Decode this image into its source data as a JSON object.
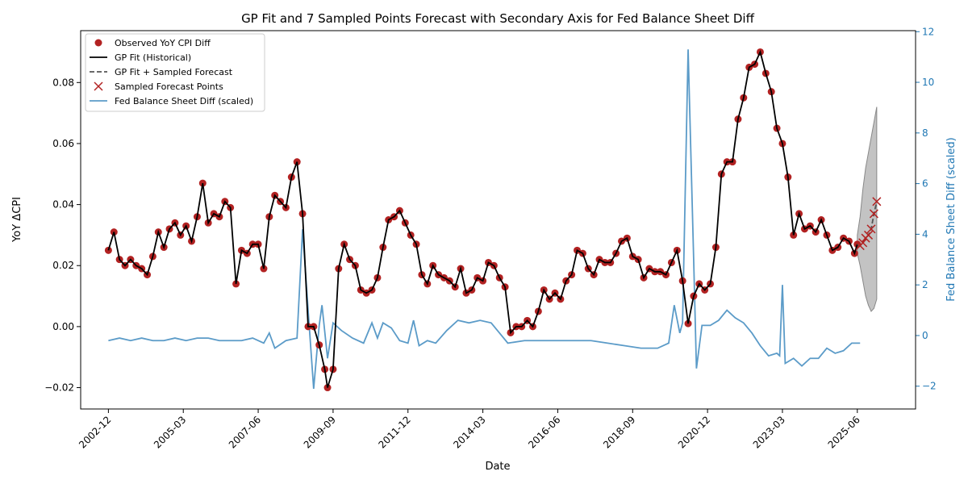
{
  "chart_data": {
    "type": "line",
    "title": "GP Fit and 7 Sampled Points Forecast with Secondary Axis for Fed Balance Sheet Diff",
    "x_label": "Date",
    "y_label": "YoY ΔCPI",
    "y2_label": "Fed Balance Sheet Diff (scaled)",
    "xlim": [
      "2002-02",
      "2027-03"
    ],
    "xticks": [
      "2002-12",
      "2005-03",
      "2007-06",
      "2009-09",
      "2011-12",
      "2014-03",
      "2016-06",
      "2018-09",
      "2020-12",
      "2023-03",
      "2025-06"
    ],
    "ylim": [
      -0.027,
      0.097
    ],
    "yticks": [
      {
        "value": -0.02,
        "label": "−0.02"
      },
      {
        "value": 0,
        "label": "0.00"
      },
      {
        "value": 0.02,
        "label": "0.02"
      },
      {
        "value": 0.04,
        "label": "0.04"
      },
      {
        "value": 0.06,
        "label": "0.06"
      },
      {
        "value": 0.08,
        "label": "0.08"
      }
    ],
    "y2lim": [
      -2.9,
      12.04
    ],
    "y2ticks": [
      {
        "value": -2,
        "label": "−2"
      },
      0,
      2,
      4,
      6,
      8,
      10,
      12
    ],
    "y2_color": "#1f77b4",
    "legend": "upper left",
    "x": [
      "2002-12",
      "2003-02",
      "2003-04",
      "2003-06",
      "2003-08",
      "2003-10",
      "2003-12",
      "2004-02",
      "2004-04",
      "2004-06",
      "2004-08",
      "2004-10",
      "2004-12",
      "2005-02",
      "2005-04",
      "2005-06",
      "2005-08",
      "2005-10",
      "2005-12",
      "2006-02",
      "2006-04",
      "2006-06",
      "2006-08",
      "2006-10",
      "2006-12",
      "2007-02",
      "2007-04",
      "2007-06",
      "2007-08",
      "2007-10",
      "2007-12",
      "2008-02",
      "2008-04",
      "2008-06",
      "2008-08",
      "2008-10",
      "2008-12",
      "2009-02",
      "2009-04",
      "2009-06",
      "2009-07",
      "2009-09",
      "2009-11",
      "2010-01",
      "2010-03",
      "2010-05",
      "2010-07",
      "2010-09",
      "2010-11",
      "2011-01",
      "2011-03",
      "2011-05",
      "2011-07",
      "2011-09",
      "2011-11",
      "2012-01",
      "2012-03",
      "2012-05",
      "2012-07",
      "2012-09",
      "2012-11",
      "2013-01",
      "2013-03",
      "2013-05",
      "2013-07",
      "2013-09",
      "2013-11",
      "2014-01",
      "2014-03",
      "2014-05",
      "2014-07",
      "2014-09",
      "2014-11",
      "2015-01",
      "2015-03",
      "2015-05",
      "2015-07",
      "2015-09",
      "2015-11",
      "2016-01",
      "2016-03",
      "2016-05",
      "2016-07",
      "2016-09",
      "2016-11",
      "2017-01",
      "2017-03",
      "2017-05",
      "2017-07",
      "2017-09",
      "2017-11",
      "2018-01",
      "2018-03",
      "2018-05",
      "2018-07",
      "2018-09",
      "2018-11",
      "2019-01",
      "2019-03",
      "2019-05",
      "2019-07",
      "2019-09",
      "2019-11",
      "2020-01",
      "2020-03",
      "2020-05",
      "2020-07",
      "2020-09",
      "2020-11",
      "2021-01",
      "2021-03",
      "2021-05",
      "2021-07",
      "2021-09",
      "2021-11",
      "2022-01",
      "2022-03",
      "2022-05",
      "2022-07",
      "2022-09",
      "2022-11",
      "2023-01",
      "2023-03",
      "2023-05",
      "2023-07",
      "2023-09",
      "2023-11",
      "2024-01",
      "2024-03",
      "2024-05",
      "2024-07",
      "2024-09",
      "2024-11",
      "2025-01",
      "2025-03",
      "2025-05",
      "2025-06"
    ],
    "series": [
      {
        "name": "Observed YoY CPI Diff",
        "style": "dot",
        "color": "#b22222",
        "values": [
          0.025,
          0.031,
          0.022,
          0.02,
          0.022,
          0.02,
          0.019,
          0.017,
          0.023,
          0.031,
          0.026,
          0.032,
          0.034,
          0.03,
          0.033,
          0.028,
          0.036,
          0.047,
          0.034,
          0.037,
          0.036,
          0.041,
          0.039,
          0.014,
          0.025,
          0.024,
          0.027,
          0.027,
          0.019,
          0.036,
          0.043,
          0.041,
          0.039,
          0.049,
          0.054,
          0.037,
          0.0,
          0.0,
          -0.006,
          -0.014,
          -0.02,
          -0.014,
          0.019,
          0.027,
          0.022,
          0.02,
          0.012,
          0.011,
          0.012,
          0.016,
          0.026,
          0.035,
          0.036,
          0.038,
          0.034,
          0.03,
          0.027,
          0.017,
          0.014,
          0.02,
          0.017,
          0.016,
          0.015,
          0.013,
          0.019,
          0.011,
          0.012,
          0.016,
          0.015,
          0.021,
          0.02,
          0.016,
          0.013,
          -0.002,
          0.0,
          0.0,
          0.002,
          0.0,
          0.005,
          0.012,
          0.009,
          0.011,
          0.009,
          0.015,
          0.017,
          0.025,
          0.024,
          0.019,
          0.017,
          0.022,
          0.021,
          0.021,
          0.024,
          0.028,
          0.029,
          0.023,
          0.022,
          0.016,
          0.019,
          0.018,
          0.018,
          0.017,
          0.021,
          0.025,
          0.015,
          0.001,
          0.01,
          0.014,
          0.012,
          0.014,
          0.026,
          0.05,
          0.054,
          0.054,
          0.068,
          0.075,
          0.085,
          0.086,
          0.09,
          0.083,
          0.077,
          0.065,
          0.06,
          0.049,
          0.03,
          0.037,
          0.032,
          0.033,
          0.031,
          0.035,
          0.03,
          0.025,
          0.026,
          0.029,
          0.028,
          0.024,
          0.027
        ]
      },
      {
        "name": "GP Fit (Historical)",
        "style": "line",
        "color": "#000000",
        "values": [
          0.025,
          0.031,
          0.022,
          0.02,
          0.022,
          0.02,
          0.019,
          0.017,
          0.023,
          0.031,
          0.026,
          0.032,
          0.034,
          0.03,
          0.033,
          0.028,
          0.036,
          0.047,
          0.034,
          0.037,
          0.036,
          0.041,
          0.039,
          0.014,
          0.025,
          0.024,
          0.027,
          0.027,
          0.019,
          0.036,
          0.043,
          0.041,
          0.039,
          0.049,
          0.054,
          0.037,
          0.0,
          0.0,
          -0.006,
          -0.014,
          -0.02,
          -0.014,
          0.019,
          0.027,
          0.022,
          0.02,
          0.012,
          0.011,
          0.012,
          0.016,
          0.026,
          0.035,
          0.036,
          0.038,
          0.034,
          0.03,
          0.027,
          0.017,
          0.014,
          0.02,
          0.017,
          0.016,
          0.015,
          0.013,
          0.019,
          0.011,
          0.012,
          0.016,
          0.015,
          0.021,
          0.02,
          0.016,
          0.013,
          -0.002,
          0.0,
          0.0,
          0.002,
          0.0,
          0.005,
          0.012,
          0.009,
          0.011,
          0.009,
          0.015,
          0.017,
          0.025,
          0.024,
          0.019,
          0.017,
          0.022,
          0.021,
          0.021,
          0.024,
          0.028,
          0.029,
          0.023,
          0.022,
          0.016,
          0.019,
          0.018,
          0.018,
          0.017,
          0.021,
          0.025,
          0.015,
          0.001,
          0.01,
          0.014,
          0.012,
          0.014,
          0.026,
          0.05,
          0.054,
          0.054,
          0.068,
          0.075,
          0.085,
          0.086,
          0.09,
          0.083,
          0.077,
          0.065,
          0.06,
          0.049,
          0.03,
          0.037,
          0.032,
          0.033,
          0.031,
          0.035,
          0.03,
          0.025,
          0.026,
          0.029,
          0.028,
          0.024,
          0.027
        ]
      },
      {
        "name": "GP Fit + Sampled Forecast",
        "style": "dashed",
        "color": "#555555",
        "x": [
          "2025-06",
          "2025-07",
          "2025-08",
          "2025-09",
          "2025-10",
          "2025-11",
          "2025-12",
          "2026-01"
        ],
        "values": [
          0.027,
          0.0265,
          0.0275,
          0.029,
          0.03,
          0.032,
          0.037,
          0.041
        ]
      },
      {
        "name": "Sampled Forecast Points",
        "style": "cross",
        "color": "#b22222",
        "x": [
          "2025-07",
          "2025-08",
          "2025-09",
          "2025-10",
          "2025-11",
          "2025-12",
          "2026-01"
        ],
        "values": [
          0.0265,
          0.0275,
          0.029,
          0.03,
          0.032,
          0.037,
          0.041
        ]
      },
      {
        "name": "Fed Balance Sheet Diff (scaled)",
        "style": "line",
        "axis": "y2",
        "color": "#5b9bc8",
        "x": [
          "2002-12",
          "2003-04",
          "2003-08",
          "2003-12",
          "2004-04",
          "2004-08",
          "2004-12",
          "2005-04",
          "2005-08",
          "2005-12",
          "2006-04",
          "2006-08",
          "2006-12",
          "2007-04",
          "2007-08",
          "2007-10",
          "2007-12",
          "2008-04",
          "2008-08",
          "2008-10",
          "2008-12",
          "2009-02",
          "2009-04",
          "2009-05",
          "2009-07",
          "2009-09",
          "2009-12",
          "2010-04",
          "2010-08",
          "2010-11",
          "2011-01",
          "2011-03",
          "2011-06",
          "2011-09",
          "2011-12",
          "2012-02",
          "2012-04",
          "2012-07",
          "2012-10",
          "2013-02",
          "2013-06",
          "2013-10",
          "2014-02",
          "2014-06",
          "2014-09",
          "2014-12",
          "2015-06",
          "2015-12",
          "2016-06",
          "2016-12",
          "2017-06",
          "2017-12",
          "2018-06",
          "2018-12",
          "2019-06",
          "2019-10",
          "2019-12",
          "2020-02",
          "2020-03",
          "2020-05",
          "2020-07",
          "2020-08",
          "2020-10",
          "2021-01",
          "2021-04",
          "2021-07",
          "2021-10",
          "2022-01",
          "2022-04",
          "2022-07",
          "2022-10",
          "2023-01",
          "2023-02",
          "2023-03",
          "2023-04",
          "2023-07",
          "2023-10",
          "2024-01",
          "2024-04",
          "2024-07",
          "2024-10",
          "2025-01",
          "2025-04",
          "2025-07"
        ],
        "values": [
          -0.2,
          -0.1,
          -0.2,
          -0.1,
          -0.2,
          -0.2,
          -0.1,
          -0.2,
          -0.1,
          -0.1,
          -0.2,
          -0.2,
          -0.2,
          -0.1,
          -0.3,
          0.1,
          -0.5,
          -0.2,
          -0.1,
          4.2,
          1.0,
          -2.1,
          0.4,
          1.2,
          -0.9,
          0.5,
          0.2,
          -0.1,
          -0.3,
          0.5,
          -0.1,
          0.5,
          0.3,
          -0.2,
          -0.3,
          0.6,
          -0.4,
          -0.2,
          -0.3,
          0.2,
          0.6,
          0.5,
          0.6,
          0.5,
          0.1,
          -0.3,
          -0.2,
          -0.2,
          -0.2,
          -0.2,
          -0.2,
          -0.3,
          -0.4,
          -0.5,
          -0.5,
          -0.3,
          1.2,
          0.1,
          0.5,
          11.3,
          3.0,
          -1.3,
          0.4,
          0.4,
          0.6,
          1.0,
          0.7,
          0.5,
          0.1,
          -0.4,
          -0.8,
          -0.7,
          -0.8,
          2.0,
          -1.1,
          -0.9,
          -1.2,
          -0.9,
          -0.9,
          -0.5,
          -0.7,
          -0.6,
          -0.3,
          -0.3
        ]
      }
    ],
    "forecast_band": {
      "color": "#888888",
      "x": [
        "2025-06",
        "2025-07",
        "2025-08",
        "2025-09",
        "2025-10",
        "2025-11",
        "2025-12",
        "2026-01"
      ],
      "lower": [
        0.024,
        0.02,
        0.015,
        0.01,
        0.007,
        0.005,
        0.006,
        0.009
      ],
      "upper": [
        0.03,
        0.036,
        0.045,
        0.052,
        0.057,
        0.062,
        0.067,
        0.072
      ]
    }
  }
}
